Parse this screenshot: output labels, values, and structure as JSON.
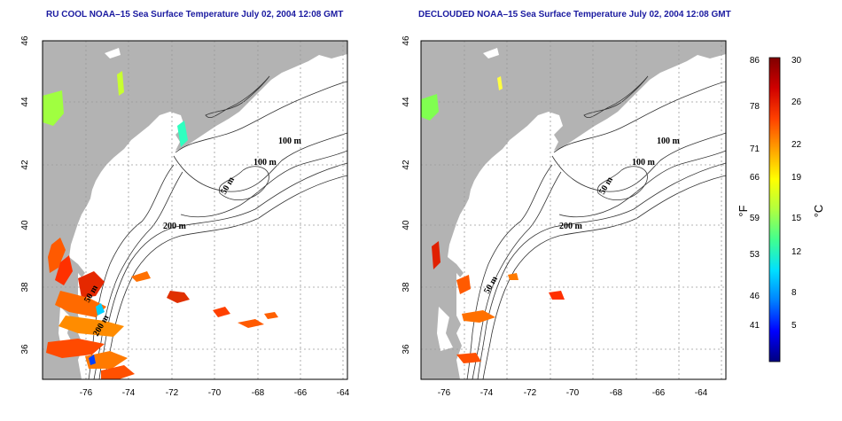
{
  "panels": [
    {
      "id": "left",
      "title": "RU COOL NOAA–15 Sea Surface Temperature July 02, 2004 12:08 GMT",
      "depth_labels": [
        "100 m",
        "100 m",
        "50 m",
        "200 m",
        "50 m",
        "200 m"
      ]
    },
    {
      "id": "right",
      "title": "DECLOUDED NOAA–15 Sea Surface Temperature July 02, 2004 12:08 GMT",
      "depth_labels": [
        "100 m",
        "100 m",
        "50 m",
        "200 m",
        "50 m"
      ]
    }
  ],
  "axes": {
    "x_ticks": [
      "-76",
      "-74",
      "-72",
      "-70",
      "-68",
      "-66",
      "-64"
    ],
    "y_ticks": [
      "46",
      "44",
      "42",
      "40",
      "38",
      "36"
    ]
  },
  "colorbar": {
    "fahrenheit_ticks": [
      "86",
      "78",
      "71",
      "66",
      "59",
      "53",
      "46",
      "41"
    ],
    "celsius_ticks": [
      "30",
      "26",
      "22",
      "19",
      "15",
      "12",
      "8",
      "5"
    ],
    "fahrenheit_unit": "°F",
    "celsius_unit": "°C",
    "colors": [
      "#00007f",
      "#0000ff",
      "#0080ff",
      "#00e0ff",
      "#40ff90",
      "#b0ff40",
      "#ffff00",
      "#ffa000",
      "#ff4000",
      "#d00000",
      "#800000"
    ]
  },
  "colors": {
    "land": "#b3b3b3",
    "title": "#1a1aa0",
    "grid": "#9a9a9a"
  }
}
